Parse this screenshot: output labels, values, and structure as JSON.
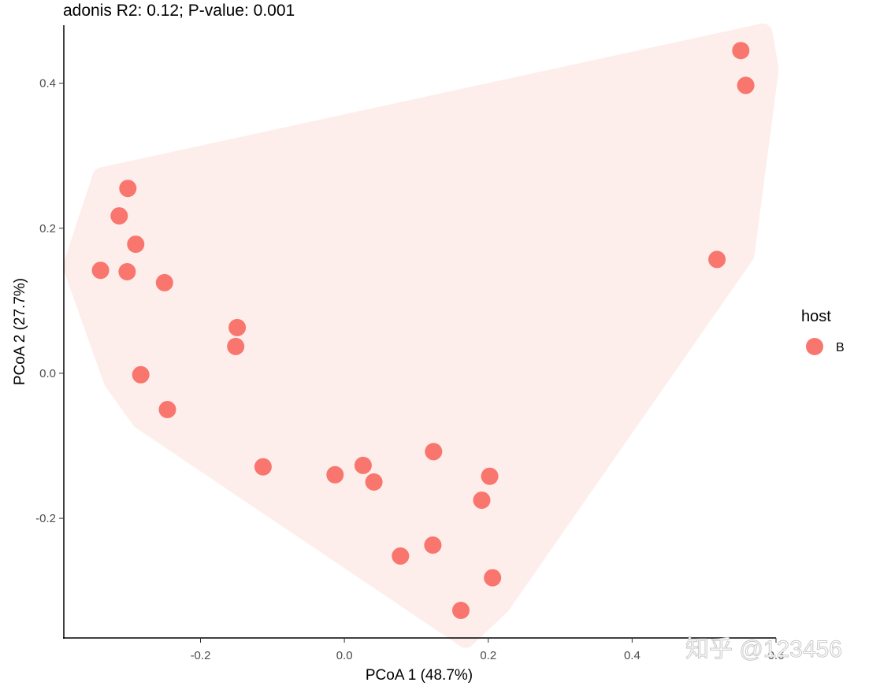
{
  "chart_data": {
    "type": "scatter",
    "title": "adonis R2: 0.12; P-value: 0.001",
    "xlabel": "PCoA 1 (48.7%)",
    "ylabel": "PCoA 2 (27.7%)",
    "xlim": [
      -0.39,
      0.6
    ],
    "ylim": [
      -0.365,
      0.48
    ],
    "x_ticks": [
      -0.2,
      0.0,
      0.2,
      0.4,
      0.6
    ],
    "x_tick_labels": [
      "-0.2",
      "0.0",
      "0.2",
      "0.4",
      "0.6"
    ],
    "y_ticks": [
      -0.2,
      0.0,
      0.2,
      0.4
    ],
    "y_tick_labels": [
      "-0.2",
      "0.0",
      "0.2",
      "0.4"
    ],
    "grid": false,
    "legend": {
      "title": "host",
      "position": "right",
      "entries": [
        "B"
      ]
    },
    "series": [
      {
        "name": "B",
        "color": "#F8766D",
        "ellipse_color": "#FDEDEB",
        "points": [
          {
            "x": 0.551,
            "y": 0.445
          },
          {
            "x": 0.558,
            "y": 0.397
          },
          {
            "x": -0.301,
            "y": 0.255
          },
          {
            "x": -0.313,
            "y": 0.217
          },
          {
            "x": -0.29,
            "y": 0.178
          },
          {
            "x": -0.339,
            "y": 0.142
          },
          {
            "x": -0.302,
            "y": 0.14
          },
          {
            "x": -0.25,
            "y": 0.125
          },
          {
            "x": 0.518,
            "y": 0.157
          },
          {
            "x": -0.149,
            "y": 0.063
          },
          {
            "x": -0.151,
            "y": 0.037
          },
          {
            "x": -0.283,
            "y": -0.002
          },
          {
            "x": -0.246,
            "y": -0.05
          },
          {
            "x": 0.124,
            "y": -0.108
          },
          {
            "x": -0.113,
            "y": -0.129
          },
          {
            "x": 0.026,
            "y": -0.127
          },
          {
            "x": -0.013,
            "y": -0.14
          },
          {
            "x": 0.041,
            "y": -0.15
          },
          {
            "x": 0.202,
            "y": -0.142
          },
          {
            "x": 0.191,
            "y": -0.175
          },
          {
            "x": 0.123,
            "y": -0.237
          },
          {
            "x": 0.078,
            "y": -0.252
          },
          {
            "x": 0.206,
            "y": -0.282
          },
          {
            "x": 0.162,
            "y": -0.327
          }
        ]
      }
    ]
  },
  "watermark": "知乎 @123456"
}
